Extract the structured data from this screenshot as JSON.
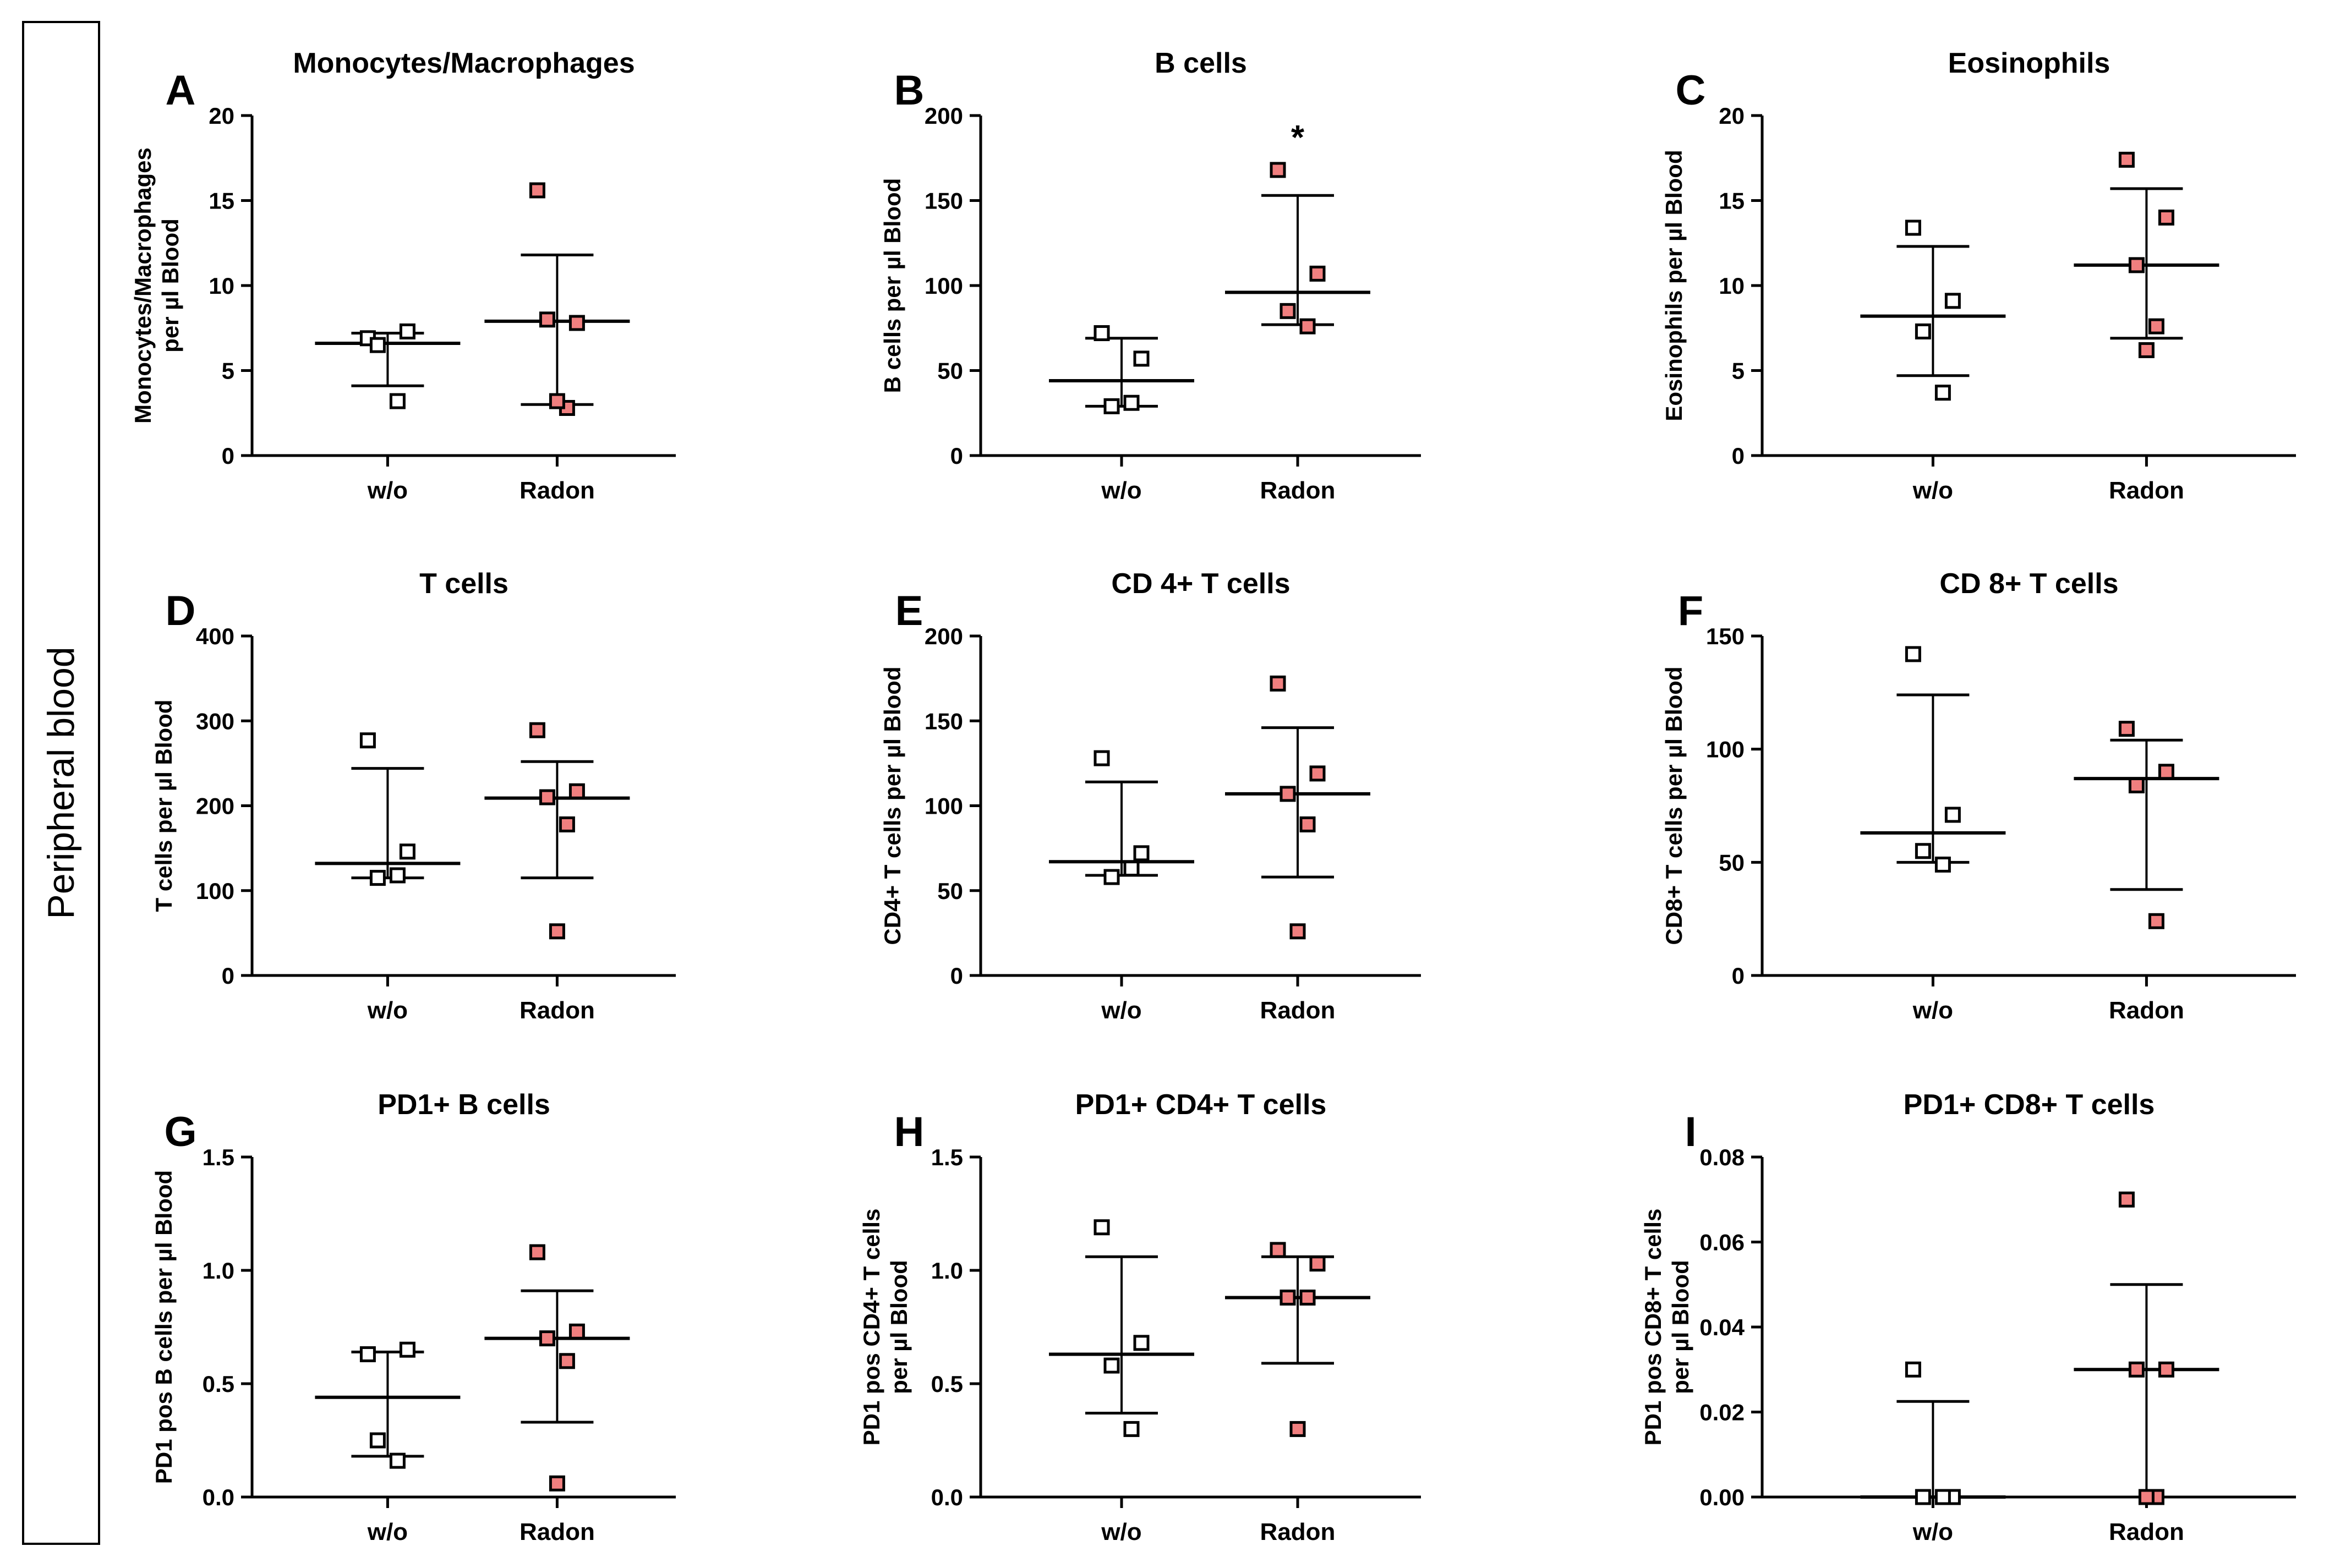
{
  "side_label": "Peripheral blood",
  "colors": {
    "wo_fill": "#ffffff",
    "radon_fill": "#f07f7f",
    "marker_stroke": "#000000",
    "axis": "#000000"
  },
  "chart_data": [
    {
      "letter": "A",
      "type": "scatter",
      "title": "Monocytes/Macrophages",
      "ylabel": [
        "Monocytes/Macrophages",
        "per µl Blood"
      ],
      "ylim": [
        0,
        20
      ],
      "yticks": [
        0,
        5,
        10,
        15,
        20
      ],
      "tick_labels": [
        "0",
        "5",
        "10",
        "15",
        "20"
      ],
      "categories": [
        "w/o",
        "Radon"
      ],
      "series": [
        {
          "name": "w/o",
          "points": [
            6.9,
            7.3,
            6.5,
            3.2
          ],
          "median": 6.6,
          "err_low": 4.1,
          "err_high": 7.2
        },
        {
          "name": "Radon",
          "points": [
            15.6,
            7.8,
            8.0,
            2.8,
            3.2
          ],
          "median": 7.9,
          "err_low": 3.0,
          "err_high": 11.8
        }
      ],
      "annotation": ""
    },
    {
      "letter": "B",
      "type": "scatter",
      "title": "B cells",
      "ylabel": [
        "B cells per µl Blood"
      ],
      "ylim": [
        0,
        200
      ],
      "yticks": [
        0,
        50,
        100,
        150,
        200
      ],
      "tick_labels": [
        "0",
        "50",
        "100",
        "150",
        "200"
      ],
      "categories": [
        "w/o",
        "Radon"
      ],
      "series": [
        {
          "name": "w/o",
          "points": [
            72,
            57,
            29,
            31
          ],
          "median": 44,
          "err_low": 29,
          "err_high": 69
        },
        {
          "name": "Radon",
          "points": [
            168,
            107,
            85,
            76
          ],
          "median": 96,
          "err_low": 77,
          "err_high": 153
        }
      ],
      "annotation": "*"
    },
    {
      "letter": "C",
      "type": "scatter",
      "title": "Eosinophils",
      "ylabel": [
        "Eosinophils per µl Blood"
      ],
      "ylim": [
        0,
        20
      ],
      "yticks": [
        0,
        5,
        10,
        15,
        20
      ],
      "tick_labels": [
        "0",
        "5",
        "10",
        "15",
        "20"
      ],
      "categories": [
        "w/o",
        "Radon"
      ],
      "series": [
        {
          "name": "w/o",
          "points": [
            13.4,
            9.1,
            7.3,
            3.7
          ],
          "median": 8.2,
          "err_low": 4.7,
          "err_high": 12.3
        },
        {
          "name": "Radon",
          "points": [
            17.4,
            14.0,
            11.2,
            7.6,
            6.2
          ],
          "median": 11.2,
          "err_low": 6.9,
          "err_high": 15.7
        }
      ],
      "annotation": ""
    },
    {
      "letter": "D",
      "type": "scatter",
      "title": "T cells",
      "ylabel": [
        "T cells per µl Blood"
      ],
      "ylim": [
        0,
        400
      ],
      "yticks": [
        0,
        100,
        200,
        300,
        400
      ],
      "tick_labels": [
        "0",
        "100",
        "200",
        "300",
        "400"
      ],
      "categories": [
        "w/o",
        "Radon"
      ],
      "series": [
        {
          "name": "w/o",
          "points": [
            277,
            146,
            115,
            118
          ],
          "median": 132,
          "err_low": 115,
          "err_high": 244
        },
        {
          "name": "Radon",
          "points": [
            289,
            217,
            210,
            178,
            52
          ],
          "median": 209,
          "err_low": 115,
          "err_high": 252
        }
      ],
      "annotation": ""
    },
    {
      "letter": "E",
      "type": "scatter",
      "title": "CD 4+ T cells",
      "ylabel": [
        "CD4+ T cells per µl Blood"
      ],
      "ylim": [
        0,
        200
      ],
      "yticks": [
        0,
        50,
        100,
        150,
        200
      ],
      "tick_labels": [
        "0",
        "50",
        "100",
        "150",
        "200"
      ],
      "categories": [
        "w/o",
        "Radon"
      ],
      "series": [
        {
          "name": "w/o",
          "points": [
            128,
            72,
            58,
            63
          ],
          "median": 67,
          "err_low": 59,
          "err_high": 114
        },
        {
          "name": "Radon",
          "points": [
            172,
            119,
            107,
            89,
            26
          ],
          "median": 107,
          "err_low": 58,
          "err_high": 146
        }
      ],
      "annotation": ""
    },
    {
      "letter": "F",
      "type": "scatter",
      "title": "CD 8+ T cells",
      "ylabel": [
        "CD8+ T cells per µl Blood"
      ],
      "ylim": [
        0,
        150
      ],
      "yticks": [
        0,
        50,
        100,
        150
      ],
      "tick_labels": [
        "0",
        "50",
        "100",
        "150"
      ],
      "categories": [
        "w/o",
        "Radon"
      ],
      "series": [
        {
          "name": "w/o",
          "points": [
            142,
            71,
            55,
            49
          ],
          "median": 63,
          "err_low": 50,
          "err_high": 124
        },
        {
          "name": "Radon",
          "points": [
            109,
            90,
            84,
            24
          ],
          "median": 87,
          "err_low": 38,
          "err_high": 104
        }
      ],
      "annotation": ""
    },
    {
      "letter": "G",
      "type": "scatter",
      "title": "PD1+ B cells",
      "ylabel": [
        "PD1 pos B cells per µl Blood"
      ],
      "ylim": [
        0,
        1.5
      ],
      "yticks": [
        0,
        0.5,
        1.0,
        1.5
      ],
      "tick_labels": [
        "0.0",
        "0.5",
        "1.0",
        "1.5"
      ],
      "categories": [
        "w/o",
        "Radon"
      ],
      "series": [
        {
          "name": "w/o",
          "points": [
            0.63,
            0.65,
            0.25,
            0.16
          ],
          "median": 0.44,
          "err_low": 0.18,
          "err_high": 0.64
        },
        {
          "name": "Radon",
          "points": [
            1.08,
            0.73,
            0.7,
            0.6,
            0.06
          ],
          "median": 0.7,
          "err_low": 0.33,
          "err_high": 0.91
        }
      ],
      "annotation": ""
    },
    {
      "letter": "H",
      "type": "scatter",
      "title": "PD1+ CD4+ T cells",
      "ylabel": [
        "PD1 pos CD4+ T cells",
        "per µl Blood"
      ],
      "ylim": [
        0,
        1.5
      ],
      "yticks": [
        0,
        0.5,
        1.0,
        1.5
      ],
      "tick_labels": [
        "0.0",
        "0.5",
        "1.0",
        "1.5"
      ],
      "categories": [
        "w/o",
        "Radon"
      ],
      "series": [
        {
          "name": "w/o",
          "points": [
            1.19,
            0.68,
            0.58,
            0.3
          ],
          "median": 0.63,
          "err_low": 0.37,
          "err_high": 1.06
        },
        {
          "name": "Radon",
          "points": [
            1.09,
            1.03,
            0.88,
            0.88,
            0.3
          ],
          "median": 0.88,
          "err_low": 0.59,
          "err_high": 1.06
        }
      ],
      "annotation": ""
    },
    {
      "letter": "I",
      "type": "scatter",
      "title": "PD1+ CD8+ T cells",
      "ylabel": [
        "PD1 pos CD8+ T cells",
        "per µl Blood"
      ],
      "ylim": [
        0,
        0.08
      ],
      "yticks": [
        0,
        0.02,
        0.04,
        0.06,
        0.08
      ],
      "tick_labels": [
        "0.00",
        "0.02",
        "0.04",
        "0.06",
        "0.08"
      ],
      "categories": [
        "w/o",
        "Radon"
      ],
      "series": [
        {
          "name": "w/o",
          "points": [
            0.03,
            0.0,
            0.0,
            0.0
          ],
          "median": 0.0,
          "err_low": 0.0,
          "err_high": 0.0225
        },
        {
          "name": "Radon",
          "points": [
            0.07,
            0.03,
            0.03,
            0.0,
            0.0
          ],
          "median": 0.03,
          "err_low": 0.0,
          "err_high": 0.05
        }
      ],
      "annotation": ""
    }
  ]
}
